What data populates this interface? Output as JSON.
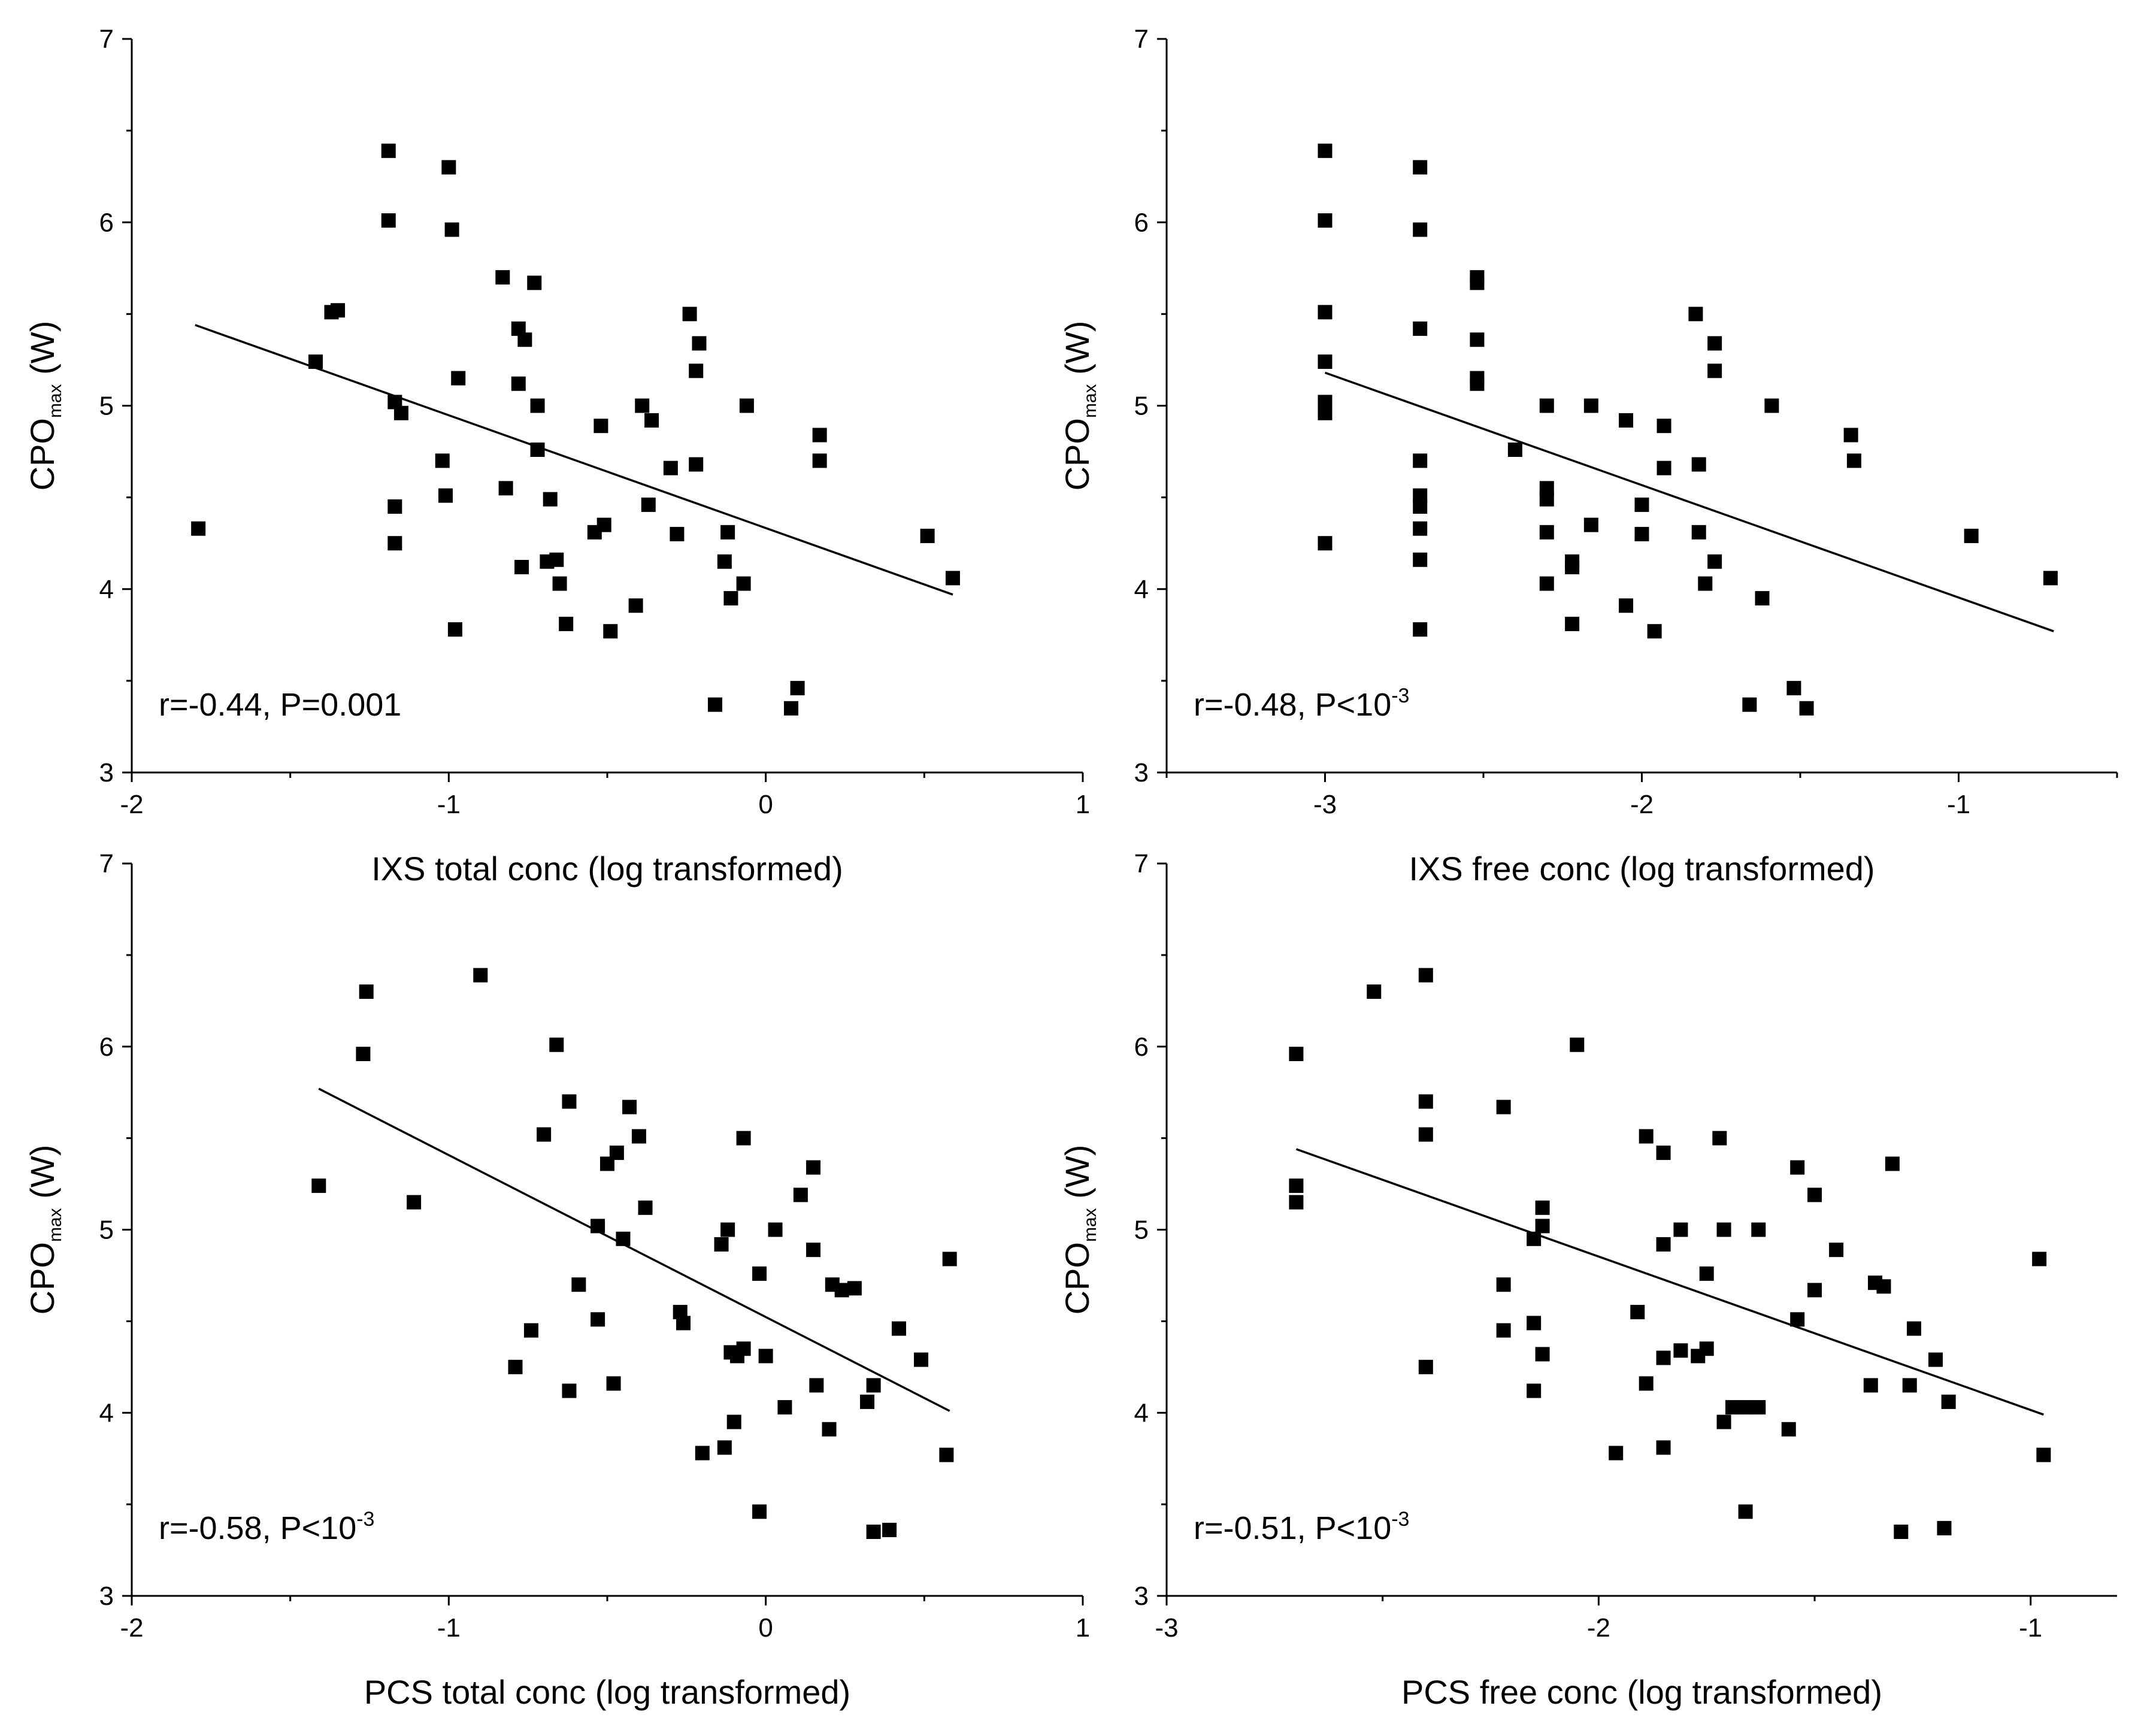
{
  "chart_data": [
    {
      "type": "scatter",
      "panel": "top-left",
      "xlabel": "IXS total conc (log transformed)",
      "ylabel": {
        "main": "CPO",
        "sub": "max",
        "unit": " (W)"
      },
      "xlim": [
        -2,
        1
      ],
      "ylim": [
        3,
        7
      ],
      "xticks": [
        -2,
        -1,
        0,
        1
      ],
      "yticks": [
        3,
        4,
        5,
        6,
        7
      ],
      "annotation": {
        "text": "r=-0.44, P=0.001",
        "sup": ""
      },
      "fit": {
        "x": [
          -1.8,
          0.59
        ],
        "y": [
          5.44,
          3.97
        ]
      },
      "points": [
        [
          -1.79,
          4.33
        ],
        [
          -1.42,
          5.24
        ],
        [
          -1.37,
          5.51
        ],
        [
          -1.35,
          5.52
        ],
        [
          -1.19,
          6.39
        ],
        [
          -1.19,
          6.01
        ],
        [
          -1.17,
          5.02
        ],
        [
          -1.15,
          4.96
        ],
        [
          -1.17,
          4.45
        ],
        [
          -1.17,
          4.25
        ],
        [
          -1.0,
          6.3
        ],
        [
          -0.99,
          5.96
        ],
        [
          -0.97,
          5.15
        ],
        [
          -1.02,
          4.7
        ],
        [
          -1.01,
          4.51
        ],
        [
          -0.98,
          3.78
        ],
        [
          -0.83,
          5.7
        ],
        [
          -0.78,
          5.42
        ],
        [
          -0.76,
          5.36
        ],
        [
          -0.73,
          5.67
        ],
        [
          -0.72,
          5.0
        ],
        [
          -0.72,
          4.76
        ],
        [
          -0.78,
          5.12
        ],
        [
          -0.82,
          4.55
        ],
        [
          -0.68,
          4.49
        ],
        [
          -0.69,
          4.15
        ],
        [
          -0.66,
          4.16
        ],
        [
          -0.65,
          4.03
        ],
        [
          -0.63,
          3.81
        ],
        [
          -0.77,
          4.12
        ],
        [
          -0.52,
          4.89
        ],
        [
          -0.54,
          4.31
        ],
        [
          -0.51,
          4.35
        ],
        [
          -0.49,
          3.77
        ],
        [
          -0.39,
          5.0
        ],
        [
          -0.36,
          4.92
        ],
        [
          -0.37,
          4.46
        ],
        [
          -0.41,
          3.91
        ],
        [
          -0.3,
          4.66
        ],
        [
          -0.28,
          4.3
        ],
        [
          -0.24,
          5.5
        ],
        [
          -0.21,
          5.34
        ],
        [
          -0.22,
          5.19
        ],
        [
          -0.22,
          4.68
        ],
        [
          -0.06,
          5.0
        ],
        [
          -0.12,
          4.31
        ],
        [
          -0.13,
          4.15
        ],
        [
          -0.11,
          3.95
        ],
        [
          -0.07,
          4.03
        ],
        [
          -0.16,
          3.37
        ],
        [
          0.17,
          4.84
        ],
        [
          0.17,
          4.7
        ],
        [
          0.1,
          3.46
        ],
        [
          0.08,
          3.35
        ],
        [
          0.51,
          4.29
        ],
        [
          0.59,
          4.06
        ]
      ]
    },
    {
      "type": "scatter",
      "panel": "top-right",
      "xlabel": "IXS free conc (log transformed)",
      "ylabel": {
        "main": "CPO",
        "sub": "max",
        "unit": " (W)"
      },
      "xlim": [
        -3.5,
        -0.5
      ],
      "ylim": [
        3,
        7
      ],
      "xticks": [
        -3,
        -2,
        -1
      ],
      "yticks": [
        3,
        4,
        5,
        6,
        7
      ],
      "annotation": {
        "text": "r=-0.48, P<10",
        "sup": "-3"
      },
      "fit": {
        "x": [
          -3.0,
          -0.7
        ],
        "y": [
          5.18,
          3.77
        ]
      },
      "points": [
        [
          -3.0,
          6.39
        ],
        [
          -3.0,
          6.01
        ],
        [
          -3.0,
          5.51
        ],
        [
          -3.0,
          5.24
        ],
        [
          -3.0,
          5.02
        ],
        [
          -3.0,
          4.96
        ],
        [
          -3.0,
          4.25
        ],
        [
          -2.7,
          6.3
        ],
        [
          -2.7,
          5.96
        ],
        [
          -2.7,
          5.42
        ],
        [
          -2.7,
          4.7
        ],
        [
          -2.7,
          4.51
        ],
        [
          -2.7,
          4.45
        ],
        [
          -2.7,
          4.33
        ],
        [
          -2.7,
          4.16
        ],
        [
          -2.7,
          3.78
        ],
        [
          -2.52,
          5.7
        ],
        [
          -2.52,
          5.67
        ],
        [
          -2.52,
          5.36
        ],
        [
          -2.52,
          5.15
        ],
        [
          -2.52,
          5.12
        ],
        [
          -2.4,
          4.76
        ],
        [
          -2.3,
          5.0
        ],
        [
          -2.3,
          4.55
        ],
        [
          -2.3,
          4.49
        ],
        [
          -2.3,
          4.31
        ],
        [
          -2.3,
          4.03
        ],
        [
          -2.16,
          5.0
        ],
        [
          -2.16,
          4.35
        ],
        [
          -2.22,
          4.15
        ],
        [
          -2.22,
          4.12
        ],
        [
          -2.22,
          3.81
        ],
        [
          -2.05,
          4.92
        ],
        [
          -2.0,
          4.46
        ],
        [
          -2.0,
          4.3
        ],
        [
          -2.05,
          3.91
        ],
        [
          -1.96,
          3.77
        ],
        [
          -1.93,
          4.89
        ],
        [
          -1.93,
          4.66
        ],
        [
          -1.83,
          5.5
        ],
        [
          -1.77,
          5.34
        ],
        [
          -1.77,
          5.19
        ],
        [
          -1.82,
          4.68
        ],
        [
          -1.82,
          4.31
        ],
        [
          -1.77,
          4.15
        ],
        [
          -1.8,
          4.03
        ],
        [
          -1.62,
          3.95
        ],
        [
          -1.59,
          5.0
        ],
        [
          -1.66,
          3.37
        ],
        [
          -1.52,
          3.46
        ],
        [
          -1.48,
          3.35
        ],
        [
          -1.34,
          4.84
        ],
        [
          -1.33,
          4.7
        ],
        [
          -0.96,
          4.29
        ],
        [
          -0.71,
          4.06
        ]
      ]
    },
    {
      "type": "scatter",
      "panel": "bottom-left",
      "xlabel": "PCS total conc (log transformed)",
      "ylabel": {
        "main": "CPO",
        "sub": "max",
        "unit": " (W)"
      },
      "xlim": [
        -2,
        1
      ],
      "ylim": [
        3,
        7
      ],
      "xticks": [
        -2,
        -1,
        0,
        1
      ],
      "yticks": [
        3,
        4,
        5,
        6,
        7
      ],
      "annotation": {
        "text": "r=-0.58, P<10",
        "sup": "-3"
      },
      "fit": {
        "x": [
          -1.41,
          0.58
        ],
        "y": [
          5.77,
          4.01
        ]
      },
      "points": [
        [
          -1.41,
          5.24
        ],
        [
          -1.26,
          6.3
        ],
        [
          -1.27,
          5.96
        ],
        [
          -1.11,
          5.15
        ],
        [
          -0.9,
          6.39
        ],
        [
          -0.66,
          6.01
        ],
        [
          -0.62,
          5.7
        ],
        [
          -0.7,
          5.52
        ],
        [
          -0.43,
          5.67
        ],
        [
          -0.4,
          5.51
        ],
        [
          -0.47,
          5.42
        ],
        [
          -0.5,
          5.36
        ],
        [
          -0.38,
          5.12
        ],
        [
          -0.53,
          5.02
        ],
        [
          -0.45,
          4.95
        ],
        [
          -0.59,
          4.7
        ],
        [
          -0.53,
          4.51
        ],
        [
          -0.74,
          4.45
        ],
        [
          -0.79,
          4.25
        ],
        [
          -0.62,
          4.12
        ],
        [
          -0.48,
          4.16
        ],
        [
          -0.27,
          4.55
        ],
        [
          -0.26,
          4.49
        ],
        [
          -0.07,
          5.5
        ],
        [
          -0.12,
          5.0
        ],
        [
          -0.14,
          4.92
        ],
        [
          0.03,
          5.0
        ],
        [
          -0.02,
          4.76
        ],
        [
          0.15,
          5.34
        ],
        [
          0.11,
          5.19
        ],
        [
          0.15,
          4.89
        ],
        [
          0.21,
          4.7
        ],
        [
          0.24,
          4.67
        ],
        [
          0.28,
          4.68
        ],
        [
          -0.11,
          4.33
        ],
        [
          -0.09,
          4.31
        ],
        [
          -0.07,
          4.35
        ],
        [
          0.0,
          4.31
        ],
        [
          -0.1,
          3.95
        ],
        [
          -0.13,
          3.81
        ],
        [
          -0.2,
          3.78
        ],
        [
          0.06,
          4.03
        ],
        [
          0.2,
          3.91
        ],
        [
          0.16,
          4.15
        ],
        [
          0.32,
          4.06
        ],
        [
          0.34,
          4.15
        ],
        [
          -0.02,
          3.46
        ],
        [
          0.34,
          3.35
        ],
        [
          0.39,
          3.36
        ],
        [
          0.42,
          4.46
        ],
        [
          0.49,
          4.29
        ],
        [
          0.58,
          4.84
        ],
        [
          0.57,
          3.77
        ]
      ]
    },
    {
      "type": "scatter",
      "panel": "bottom-right",
      "xlabel": "PCS free conc (log transformed)",
      "ylabel": {
        "main": "CPO",
        "sub": "max",
        "unit": " (W)"
      },
      "xlim": [
        -3,
        -0.8
      ],
      "ylim": [
        3,
        7
      ],
      "xticks": [
        -3,
        -2,
        -1
      ],
      "yticks": [
        3,
        4,
        5,
        6,
        7
      ],
      "annotation": {
        "text": "r=-0.51, P<10",
        "sup": "-3"
      },
      "fit": {
        "x": [
          -2.7,
          -0.97
        ],
        "y": [
          5.44,
          3.99
        ]
      },
      "points": [
        [
          -2.7,
          5.96
        ],
        [
          -2.7,
          5.24
        ],
        [
          -2.7,
          5.15
        ],
        [
          -2.52,
          6.3
        ],
        [
          -2.4,
          6.39
        ],
        [
          -2.4,
          5.7
        ],
        [
          -2.4,
          5.52
        ],
        [
          -2.4,
          4.25
        ],
        [
          -2.05,
          6.01
        ],
        [
          -2.22,
          5.67
        ],
        [
          -2.22,
          4.7
        ],
        [
          -2.22,
          4.45
        ],
        [
          -2.13,
          5.12
        ],
        [
          -2.13,
          5.02
        ],
        [
          -2.15,
          4.95
        ],
        [
          -2.15,
          4.49
        ],
        [
          -2.13,
          4.32
        ],
        [
          -2.15,
          4.12
        ],
        [
          -1.89,
          5.51
        ],
        [
          -1.85,
          5.42
        ],
        [
          -1.85,
          4.92
        ],
        [
          -1.81,
          5.0
        ],
        [
          -1.91,
          4.55
        ],
        [
          -1.81,
          4.34
        ],
        [
          -1.85,
          4.3
        ],
        [
          -1.77,
          4.31
        ],
        [
          -1.75,
          4.35
        ],
        [
          -1.89,
          4.16
        ],
        [
          -1.96,
          3.78
        ],
        [
          -1.85,
          3.81
        ],
        [
          -1.72,
          5.5
        ],
        [
          -1.71,
          5.0
        ],
        [
          -1.75,
          4.76
        ],
        [
          -1.63,
          5.0
        ],
        [
          -1.71,
          3.95
        ],
        [
          -1.69,
          4.03
        ],
        [
          -1.66,
          4.03
        ],
        [
          -1.63,
          4.03
        ],
        [
          -1.56,
          3.91
        ],
        [
          -1.66,
          3.46
        ],
        [
          -1.54,
          5.34
        ],
        [
          -1.5,
          5.19
        ],
        [
          -1.45,
          4.89
        ],
        [
          -1.5,
          4.67
        ],
        [
          -1.54,
          4.51
        ],
        [
          -1.36,
          4.71
        ],
        [
          -1.32,
          5.36
        ],
        [
          -1.34,
          4.69
        ],
        [
          -1.27,
          4.46
        ],
        [
          -1.37,
          4.15
        ],
        [
          -1.28,
          4.15
        ],
        [
          -1.22,
          4.29
        ],
        [
          -1.19,
          4.06
        ],
        [
          -1.3,
          3.35
        ],
        [
          -1.2,
          3.37
        ],
        [
          -0.98,
          4.84
        ],
        [
          -0.97,
          3.77
        ]
      ]
    }
  ]
}
